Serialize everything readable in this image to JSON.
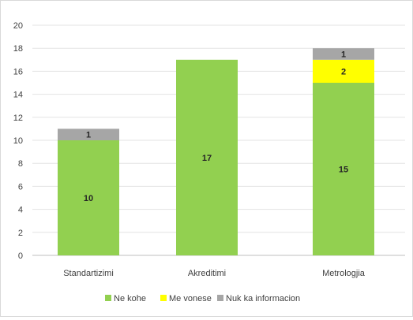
{
  "chart_data": {
    "type": "bar",
    "stacked": true,
    "title": "",
    "xlabel": "",
    "ylabel": "",
    "ylim": [
      0,
      20
    ],
    "ytick_step": 2,
    "grid": true,
    "legend_position": "bottom",
    "categories": [
      "Standartizimi",
      "Akreditimi",
      "Metrologjia"
    ],
    "series": [
      {
        "name": "Ne kohe",
        "color": "#92D050",
        "values": [
          10,
          17,
          15
        ],
        "labels": [
          "10",
          "17",
          "15"
        ]
      },
      {
        "name": "Me vonese",
        "color": "#FFFF00",
        "values": [
          0,
          0,
          2
        ],
        "labels": [
          "",
          "",
          "2"
        ]
      },
      {
        "name": "Nuk ka informacion",
        "color": "#A6A6A6",
        "values": [
          1,
          0,
          1
        ],
        "labels": [
          "1",
          "",
          "1"
        ]
      }
    ]
  }
}
